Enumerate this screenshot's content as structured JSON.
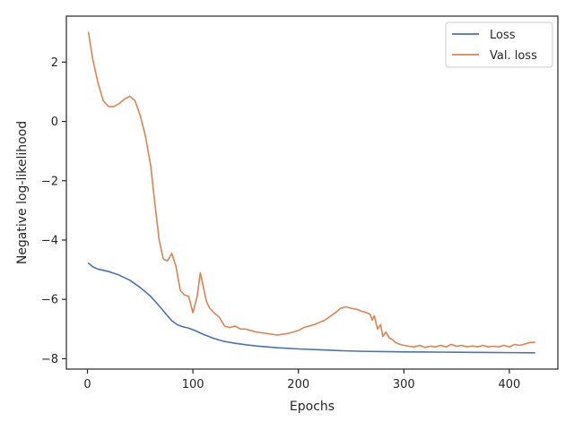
{
  "chart_data": {
    "type": "line",
    "title": "",
    "xlabel": "Epochs",
    "ylabel": "Negative log-likelihood",
    "xlim": [
      -20,
      446
    ],
    "ylim": [
      -8.35,
      3.55
    ],
    "x_ticks": [
      0,
      100,
      200,
      300,
      400
    ],
    "y_ticks": [
      -8,
      -6,
      -4,
      -2,
      0,
      2
    ],
    "grid": false,
    "legend": "top-right",
    "series": [
      {
        "name": "Loss",
        "color": "#4c72b0",
        "x": [
          1,
          5,
          10,
          20,
          30,
          40,
          50,
          60,
          65,
          70,
          75,
          80,
          85,
          90,
          95,
          100,
          110,
          120,
          130,
          140,
          150,
          160,
          170,
          180,
          190,
          200,
          220,
          240,
          260,
          280,
          300,
          320,
          340,
          360,
          380,
          400,
          424
        ],
        "y": [
          -4.78,
          -4.9,
          -4.98,
          -5.06,
          -5.18,
          -5.35,
          -5.6,
          -5.9,
          -6.1,
          -6.3,
          -6.52,
          -6.72,
          -6.85,
          -6.92,
          -6.96,
          -7.02,
          -7.18,
          -7.32,
          -7.42,
          -7.48,
          -7.53,
          -7.57,
          -7.6,
          -7.63,
          -7.65,
          -7.67,
          -7.7,
          -7.73,
          -7.75,
          -7.76,
          -7.77,
          -7.775,
          -7.78,
          -7.785,
          -7.79,
          -7.795,
          -7.8
        ]
      },
      {
        "name": "Val. loss",
        "color": "#dd8452",
        "x": [
          1,
          5,
          10,
          15,
          20,
          25,
          30,
          35,
          40,
          45,
          50,
          55,
          60,
          64,
          68,
          72,
          76,
          80,
          84,
          88,
          92,
          96,
          100,
          104,
          107,
          110,
          113,
          116,
          120,
          125,
          130,
          135,
          140,
          145,
          150,
          160,
          170,
          180,
          190,
          200,
          205,
          215,
          225,
          235,
          240,
          245,
          250,
          255,
          260,
          265,
          268,
          270,
          272,
          275,
          278,
          280,
          283,
          286,
          289,
          292,
          295,
          300,
          305,
          310,
          315,
          320,
          325,
          330,
          335,
          340,
          345,
          350,
          355,
          360,
          365,
          370,
          375,
          380,
          385,
          390,
          395,
          400,
          405,
          410,
          415,
          420,
          424
        ],
        "y": [
          3.0,
          2.1,
          1.3,
          0.7,
          0.5,
          0.5,
          0.6,
          0.75,
          0.85,
          0.7,
          0.2,
          -0.5,
          -1.5,
          -2.8,
          -4.0,
          -4.65,
          -4.7,
          -4.45,
          -4.9,
          -5.7,
          -5.85,
          -5.9,
          -6.45,
          -5.9,
          -5.1,
          -5.6,
          -6.1,
          -6.3,
          -6.45,
          -6.6,
          -6.9,
          -6.95,
          -6.9,
          -7.0,
          -7.0,
          -7.1,
          -7.15,
          -7.2,
          -7.15,
          -7.05,
          -6.95,
          -6.85,
          -6.7,
          -6.45,
          -6.3,
          -6.25,
          -6.3,
          -6.33,
          -6.4,
          -6.45,
          -6.5,
          -6.7,
          -6.55,
          -7.0,
          -6.85,
          -7.25,
          -7.1,
          -7.3,
          -7.35,
          -7.45,
          -7.5,
          -7.55,
          -7.58,
          -7.6,
          -7.55,
          -7.62,
          -7.58,
          -7.6,
          -7.55,
          -7.6,
          -7.52,
          -7.58,
          -7.55,
          -7.6,
          -7.57,
          -7.6,
          -7.55,
          -7.6,
          -7.58,
          -7.6,
          -7.55,
          -7.6,
          -7.52,
          -7.55,
          -7.5,
          -7.45,
          -7.45
        ]
      }
    ]
  }
}
